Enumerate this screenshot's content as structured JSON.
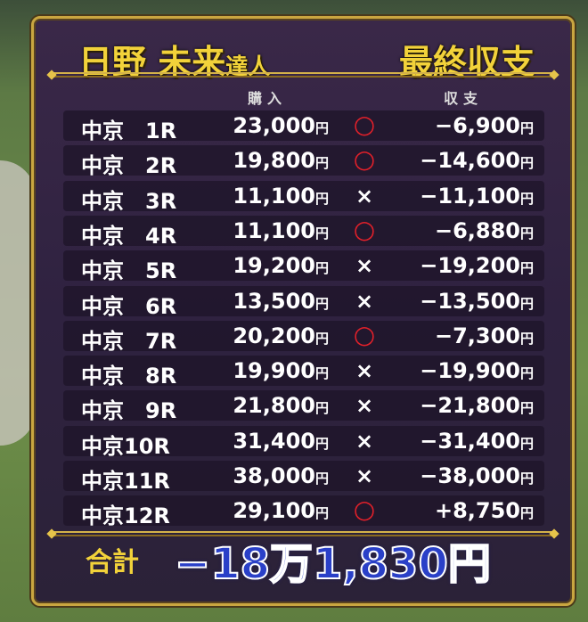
{
  "title": {
    "name": "日野 未来",
    "suffix": "達人",
    "right": "最終収支"
  },
  "headers": {
    "purchase": "購入",
    "balance": "収支"
  },
  "rows": [
    {
      "race": "中京　1R",
      "amount": "23,000",
      "mark": "○",
      "balance": "−6,900"
    },
    {
      "race": "中京　2R",
      "amount": "19,800",
      "mark": "○",
      "balance": "−14,600"
    },
    {
      "race": "中京　3R",
      "amount": "11,100",
      "mark": "×",
      "balance": "−11,100"
    },
    {
      "race": "中京　4R",
      "amount": "11,100",
      "mark": "○",
      "balance": "−6,880"
    },
    {
      "race": "中京　5R",
      "amount": "19,200",
      "mark": "×",
      "balance": "−19,200"
    },
    {
      "race": "中京　6R",
      "amount": "13,500",
      "mark": "×",
      "balance": "−13,500"
    },
    {
      "race": "中京　7R",
      "amount": "20,200",
      "mark": "○",
      "balance": "−7,300"
    },
    {
      "race": "中京　8R",
      "amount": "19,900",
      "mark": "×",
      "balance": "−19,900"
    },
    {
      "race": "中京　9R",
      "amount": "21,800",
      "mark": "×",
      "balance": "−21,800"
    },
    {
      "race": "中京10R",
      "amount": "31,400",
      "mark": "×",
      "balance": "−31,400"
    },
    {
      "race": "中京11R",
      "amount": "38,000",
      "mark": "×",
      "balance": "−38,000"
    },
    {
      "race": "中京12R",
      "amount": "29,100",
      "mark": "○",
      "balance": "+8,750"
    }
  ],
  "yen": "円",
  "total": {
    "label": "合計",
    "value": "−18万1,830円"
  },
  "colors": {
    "gold": "#f2d23a",
    "panel": "#2f2240",
    "hit": "#e0202a",
    "total": "#2a40c8"
  }
}
